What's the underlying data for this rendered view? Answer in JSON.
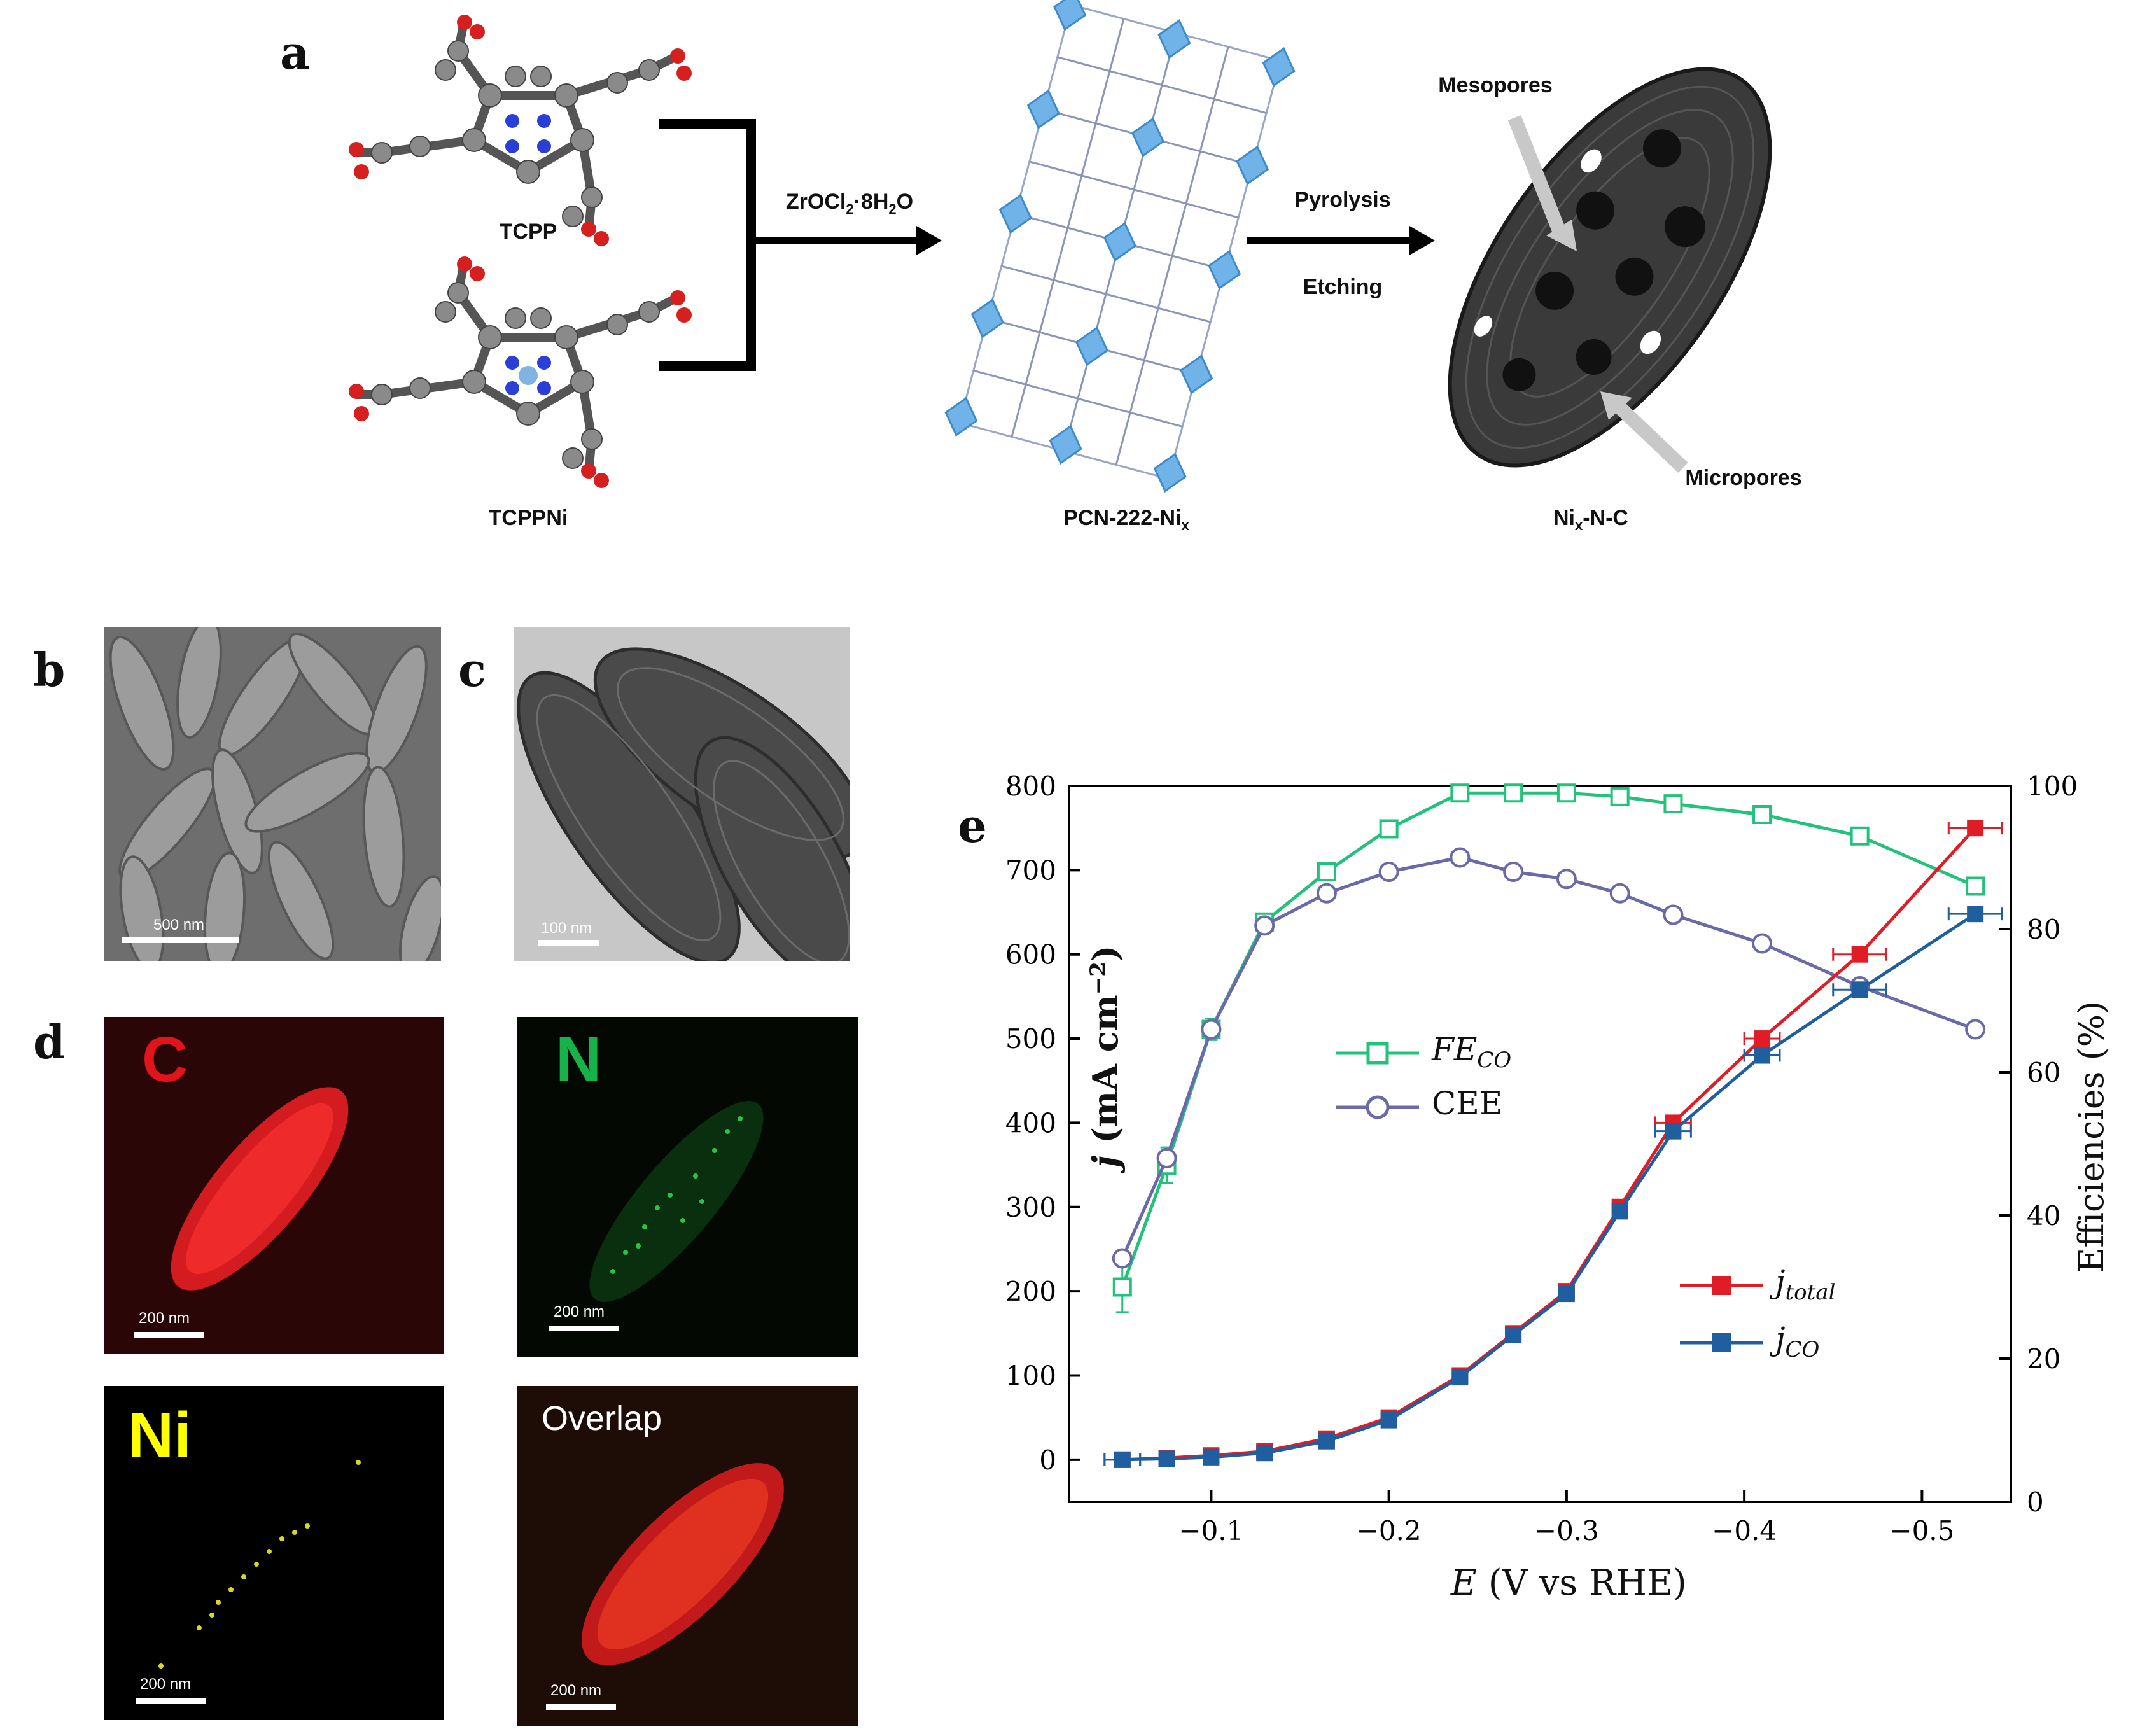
{
  "panels": {
    "a": "a",
    "b": "b",
    "c": "c",
    "d": "d",
    "e": "e"
  },
  "scheme": {
    "molecule_top": "TCPP",
    "molecule_bottom": "TCPPNi",
    "reagent": "ZrOCl",
    "reagent_sub": "2",
    "reagent_rest": "·8H",
    "reagent_sub2": "2",
    "reagent_end": "O",
    "mof": "PCN-222-Ni",
    "mof_sub": "x",
    "step1": "Pyrolysis",
    "step2": "Etching",
    "product": "Ni",
    "product_sub": "x",
    "product_rest": "-N-C",
    "mesopores": "Mesopores",
    "micropores": "Micropores"
  },
  "images": {
    "sem_scale": "500 nm",
    "tem_scale": "100 nm",
    "map_scale": "200 nm",
    "map_c": "C",
    "map_n": "N",
    "map_ni": "Ni",
    "map_overlap": "Overlap",
    "colors": {
      "c": "#e0141a",
      "n": "#16b24a",
      "ni": "#ffff00"
    }
  },
  "chart_data": {
    "type": "line",
    "xlabel_italic": "E",
    "xlabel_rest": " (V vs RHE)",
    "ylabel_italic": "j",
    "ylabel_rest": " (mA cm",
    "ylabel_sup": "−2",
    "ylabel_end": ")",
    "y2label": "Efficiencies (%)",
    "xlim": [
      -0.02,
      -0.55
    ],
    "ylim": [
      -50,
      800
    ],
    "y2lim": [
      0,
      100
    ],
    "x_ticks": [
      "−0.1",
      "−0.2",
      "−0.3",
      "−0.4",
      "−0.5"
    ],
    "x_tick_values": [
      -0.1,
      -0.2,
      -0.3,
      -0.4,
      -0.5
    ],
    "y_ticks": [
      "0",
      "100",
      "200",
      "300",
      "400",
      "500",
      "600",
      "700",
      "800"
    ],
    "y2_ticks": [
      "0",
      "20",
      "40",
      "60",
      "80",
      "100"
    ],
    "x": [
      -0.05,
      -0.075,
      -0.1,
      -0.13,
      -0.165,
      -0.2,
      -0.24,
      -0.27,
      -0.3,
      -0.33,
      -0.36,
      -0.41,
      -0.465,
      -0.53
    ],
    "series": [
      {
        "name": "FE",
        "name_sub": "CO",
        "axis": "y2",
        "color": "#22c27a",
        "marker": "open-square",
        "values": [
          30,
          47,
          66,
          81,
          88,
          94,
          99,
          99,
          99,
          98.5,
          97.5,
          96,
          93,
          86
        ],
        "error": [
          3.5,
          2.5,
          1.5,
          1,
          0,
          0,
          0,
          0,
          0,
          0,
          0,
          0,
          0,
          0
        ]
      },
      {
        "name": "CEE",
        "axis": "y2",
        "color": "#6b6aa8",
        "marker": "open-circle",
        "values": [
          34,
          48,
          66,
          80.5,
          85,
          88,
          90,
          88,
          87,
          85,
          82,
          78,
          72,
          66
        ]
      },
      {
        "name": "j",
        "name_sub": "total",
        "axis": "y",
        "color": "#e01d26",
        "marker": "filled-square",
        "values": [
          0,
          2,
          5,
          10,
          25,
          50,
          100,
          150,
          200,
          300,
          400,
          500,
          600,
          750
        ],
        "xerr": [
          0.01,
          0,
          0,
          0,
          0,
          0,
          0,
          0,
          0,
          0,
          0.01,
          0.01,
          0.015,
          0.015
        ]
      },
      {
        "name": "j",
        "name_sub": "CO",
        "axis": "y",
        "color": "#1f5fa0",
        "marker": "filled-square",
        "values": [
          0,
          1,
          3,
          8,
          22,
          47,
          98,
          148,
          197,
          295,
          390,
          480,
          558,
          648
        ],
        "xerr": [
          0.01,
          0,
          0,
          0,
          0,
          0,
          0,
          0,
          0,
          0,
          0.01,
          0.01,
          0.015,
          0.015
        ]
      }
    ]
  }
}
